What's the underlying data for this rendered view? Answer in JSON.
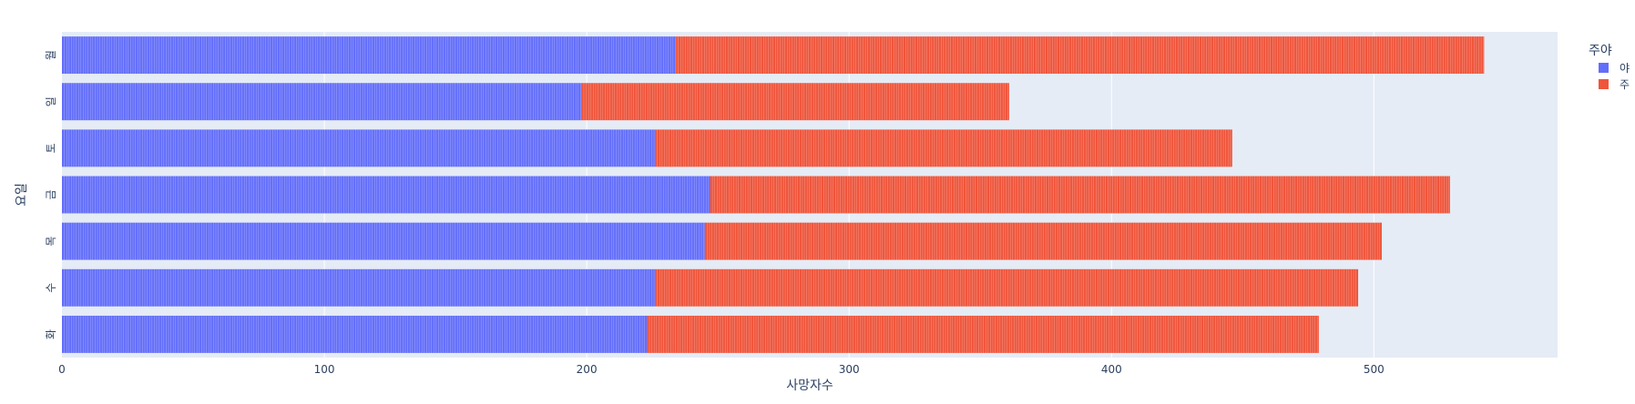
{
  "chart_data": {
    "type": "bar",
    "orientation": "horizontal",
    "barmode": "stack",
    "categories": [
      "화",
      "수",
      "목",
      "금",
      "토",
      "일",
      "월"
    ],
    "series": [
      {
        "name": "야",
        "color": "#636efa",
        "values": [
          223,
          226,
          245,
          247,
          226,
          198,
          234
        ]
      },
      {
        "name": "주",
        "color": "#ef553b",
        "values": [
          256,
          268,
          258,
          282,
          220,
          163,
          308
        ]
      }
    ],
    "xlabel": "사망자수",
    "ylabel": "요일",
    "xticks": [
      0,
      100,
      200,
      300,
      400,
      500
    ],
    "xlim": [
      0,
      570
    ],
    "grid": true,
    "legend": {
      "title": "주야",
      "placement": "top-right"
    }
  }
}
